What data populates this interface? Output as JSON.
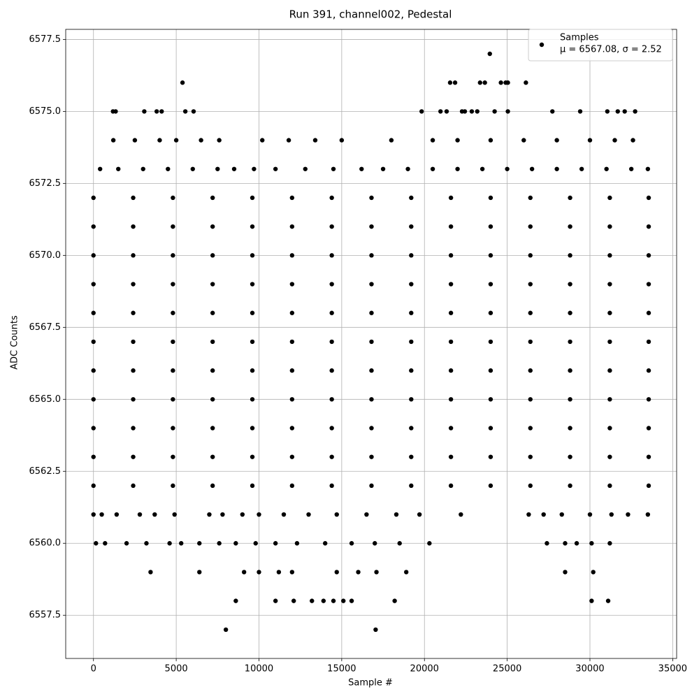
{
  "chart_data": {
    "type": "scatter",
    "title": "Run 391, channel002, Pedestal",
    "xlabel": "Sample #",
    "ylabel": "ADC Counts",
    "legend_stats": "μ = 6567.08, σ = 2.52",
    "legend_position": "upper right",
    "grid": true,
    "xlim": [
      -1678,
      35238
    ],
    "ylim": [
      6556.0,
      6577.85
    ],
    "xticks": [
      0,
      5000,
      10000,
      15000,
      20000,
      25000,
      30000,
      35000
    ],
    "yticks": [
      6557.5,
      {
        "value": 6560,
        "label": "6560.0"
      },
      6562.5,
      {
        "value": 6565,
        "label": "6565.0"
      },
      6567.5,
      {
        "value": 6570,
        "label": "6570.0"
      },
      6572.5,
      {
        "value": 6575,
        "label": "6575.0"
      },
      6577.5
    ],
    "series": [
      {
        "name": "Samples",
        "color": "#000000",
        "x": [
          8000,
          17050,
          8600,
          11000,
          12100,
          13200,
          13900,
          14500,
          15100,
          15600,
          18200,
          30100,
          31100,
          3450,
          6400,
          9100,
          10000,
          11200,
          12000,
          14700,
          16000,
          17100,
          18900,
          28500,
          30200,
          150,
          700,
          2000,
          3200,
          4600,
          5300,
          6400,
          7600,
          8600,
          9800,
          11000,
          12300,
          14000,
          15600,
          17000,
          18500,
          20300,
          27400,
          28500,
          29200,
          30100,
          31200,
          0,
          500,
          1400,
          2800,
          3700,
          4900,
          7000,
          7800,
          9000,
          10000,
          11500,
          13000,
          14700,
          16500,
          18300,
          19700,
          22200,
          26300,
          27200,
          28300,
          30000,
          31300,
          32300,
          33500,
          0,
          2400,
          4800,
          7200,
          9600,
          12000,
          14400,
          16800,
          19200,
          21600,
          24000,
          26400,
          28800,
          31200,
          33550,
          0,
          2400,
          4800,
          7200,
          9600,
          12000,
          14400,
          16800,
          19200,
          21600,
          24000,
          26400,
          28800,
          31200,
          33550,
          0,
          2400,
          4800,
          7200,
          9600,
          12000,
          14400,
          16800,
          19200,
          21600,
          24000,
          26400,
          28800,
          31200,
          33550,
          0,
          2400,
          4800,
          7200,
          9600,
          12000,
          14400,
          16800,
          19200,
          21600,
          24000,
          26400,
          28800,
          31200,
          33550,
          0,
          2400,
          4800,
          7200,
          9600,
          12000,
          14400,
          16800,
          19200,
          21600,
          24000,
          26400,
          28800,
          31200,
          33550,
          0,
          2400,
          4800,
          7200,
          9600,
          12000,
          14400,
          16800,
          19200,
          21600,
          24000,
          26400,
          28800,
          31200,
          33550,
          0,
          2400,
          4800,
          7200,
          9600,
          12000,
          14400,
          16800,
          19200,
          21600,
          24000,
          26400,
          28800,
          31200,
          33550,
          0,
          2400,
          4800,
          7200,
          9600,
          12000,
          14400,
          16800,
          19200,
          21600,
          24000,
          26400,
          28800,
          31200,
          33550,
          0,
          2400,
          4800,
          7200,
          9600,
          12000,
          14400,
          16800,
          19200,
          21600,
          24000,
          26400,
          28800,
          31200,
          33550,
          0,
          2400,
          4800,
          7200,
          9600,
          12000,
          14400,
          16800,
          19200,
          21600,
          24000,
          26400,
          28800,
          31200,
          33550,
          0,
          2400,
          4800,
          7200,
          9600,
          12000,
          14400,
          16800,
          19200,
          21600,
          24000,
          26400,
          28800,
          31200,
          33550,
          400,
          1500,
          3000,
          4500,
          6000,
          7500,
          8500,
          9700,
          11000,
          12800,
          14500,
          16200,
          17500,
          19000,
          20500,
          22000,
          23500,
          25000,
          26500,
          28000,
          29500,
          31000,
          32500,
          33500,
          1200,
          2500,
          4000,
          5000,
          6500,
          7600,
          10200,
          11800,
          13400,
          15000,
          18000,
          20500,
          22000,
          24000,
          26000,
          28000,
          30000,
          31500,
          32600,
          1180,
          1340,
          3070,
          3820,
          4120,
          5550,
          6050,
          19830,
          20970,
          21340,
          22270,
          22440,
          22860,
          23190,
          24240,
          25040,
          27730,
          29410,
          31050,
          31680,
          32100,
          32730,
          5380,
          21550,
          21850,
          23360,
          23650,
          24620,
          24910,
          25040,
          26130,
          23950
        ],
        "values": [
          6557,
          6557,
          6558,
          6558,
          6558,
          6558,
          6558,
          6558,
          6558,
          6558,
          6558,
          6558,
          6558,
          6559,
          6559,
          6559,
          6559,
          6559,
          6559,
          6559,
          6559,
          6559,
          6559,
          6559,
          6559,
          6560,
          6560,
          6560,
          6560,
          6560,
          6560,
          6560,
          6560,
          6560,
          6560,
          6560,
          6560,
          6560,
          6560,
          6560,
          6560,
          6560,
          6560,
          6560,
          6560,
          6560,
          6560,
          6561,
          6561,
          6561,
          6561,
          6561,
          6561,
          6561,
          6561,
          6561,
          6561,
          6561,
          6561,
          6561,
          6561,
          6561,
          6561,
          6561,
          6561,
          6561,
          6561,
          6561,
          6561,
          6561,
          6561,
          6562,
          6562,
          6562,
          6562,
          6562,
          6562,
          6562,
          6562,
          6562,
          6562,
          6562,
          6562,
          6562,
          6562,
          6562,
          6563,
          6563,
          6563,
          6563,
          6563,
          6563,
          6563,
          6563,
          6563,
          6563,
          6563,
          6563,
          6563,
          6563,
          6563,
          6564,
          6564,
          6564,
          6564,
          6564,
          6564,
          6564,
          6564,
          6564,
          6564,
          6564,
          6564,
          6564,
          6564,
          6564,
          6565,
          6565,
          6565,
          6565,
          6565,
          6565,
          6565,
          6565,
          6565,
          6565,
          6565,
          6565,
          6565,
          6565,
          6565,
          6566,
          6566,
          6566,
          6566,
          6566,
          6566,
          6566,
          6566,
          6566,
          6566,
          6566,
          6566,
          6566,
          6566,
          6566,
          6567,
          6567,
          6567,
          6567,
          6567,
          6567,
          6567,
          6567,
          6567,
          6567,
          6567,
          6567,
          6567,
          6567,
          6567,
          6568,
          6568,
          6568,
          6568,
          6568,
          6568,
          6568,
          6568,
          6568,
          6568,
          6568,
          6568,
          6568,
          6568,
          6568,
          6569,
          6569,
          6569,
          6569,
          6569,
          6569,
          6569,
          6569,
          6569,
          6569,
          6569,
          6569,
          6569,
          6569,
          6569,
          6570,
          6570,
          6570,
          6570,
          6570,
          6570,
          6570,
          6570,
          6570,
          6570,
          6570,
          6570,
          6570,
          6570,
          6570,
          6571,
          6571,
          6571,
          6571,
          6571,
          6571,
          6571,
          6571,
          6571,
          6571,
          6571,
          6571,
          6571,
          6571,
          6571,
          6572,
          6572,
          6572,
          6572,
          6572,
          6572,
          6572,
          6572,
          6572,
          6572,
          6572,
          6572,
          6572,
          6572,
          6572,
          6573,
          6573,
          6573,
          6573,
          6573,
          6573,
          6573,
          6573,
          6573,
          6573,
          6573,
          6573,
          6573,
          6573,
          6573,
          6573,
          6573,
          6573,
          6573,
          6573,
          6573,
          6573,
          6573,
          6573,
          6574,
          6574,
          6574,
          6574,
          6574,
          6574,
          6574,
          6574,
          6574,
          6574,
          6574,
          6574,
          6574,
          6574,
          6574,
          6574,
          6574,
          6574,
          6574,
          6575,
          6575,
          6575,
          6575,
          6575,
          6575,
          6575,
          6575,
          6575,
          6575,
          6575,
          6575,
          6575,
          6575,
          6575,
          6575,
          6575,
          6575,
          6575,
          6575,
          6575,
          6575,
          6576,
          6576,
          6576,
          6576,
          6576,
          6576,
          6576,
          6576,
          6576,
          6577
        ]
      }
    ]
  }
}
